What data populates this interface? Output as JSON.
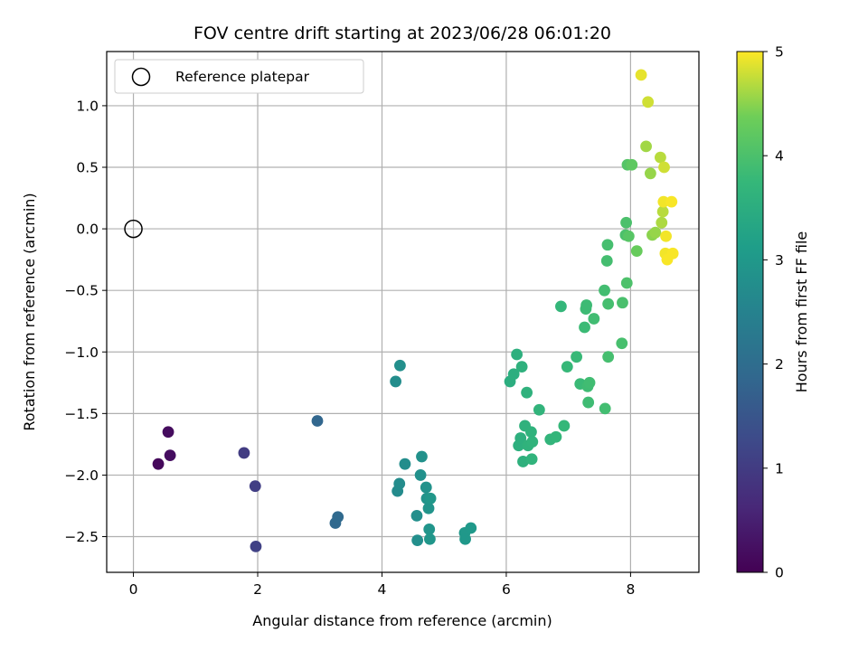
{
  "chart_data": {
    "type": "scatter",
    "title": "FOV centre drift starting at 2023/06/28 06:01:20",
    "xlabel": "Angular distance from reference (arcmin)",
    "ylabel": "Rotation from reference (arcmin)",
    "xlim": [
      -0.43,
      9.1
    ],
    "ylim": [
      -2.79,
      1.44
    ],
    "xticks": [
      0,
      2,
      4,
      6,
      8
    ],
    "yticks": [
      -2.5,
      -2.0,
      -1.5,
      -1.0,
      -0.5,
      0.0,
      0.5,
      1.0
    ],
    "xtick_labels": [
      "0",
      "2",
      "4",
      "6",
      "8"
    ],
    "ytick_labels": [
      "−2.5",
      "−2.0",
      "−1.5",
      "−1.0",
      "−0.5",
      "0.0",
      "0.5",
      "1.0"
    ],
    "grid": true,
    "legend": {
      "position": "top-left",
      "entries": [
        "Reference platepar"
      ]
    },
    "reference_point": {
      "x": 0.0,
      "y": 0.0
    },
    "colorbar": {
      "label": "Hours from first FF file",
      "range": [
        0,
        5
      ],
      "ticks": [
        0,
        1,
        2,
        3,
        4,
        5
      ],
      "tick_labels": [
        "0",
        "1",
        "2",
        "3",
        "4",
        "5"
      ],
      "colormap": "viridis"
    },
    "points": [
      {
        "x": 0.4,
        "y": -1.91,
        "h": 0.12
      },
      {
        "x": 0.56,
        "y": -1.65,
        "h": 0.18
      },
      {
        "x": 0.59,
        "y": -1.84,
        "h": 0.2
      },
      {
        "x": 1.78,
        "y": -1.82,
        "h": 1.0
      },
      {
        "x": 1.96,
        "y": -2.09,
        "h": 1.05
      },
      {
        "x": 1.97,
        "y": -2.58,
        "h": 1.1
      },
      {
        "x": 2.96,
        "y": -1.56,
        "h": 1.85
      },
      {
        "x": 3.25,
        "y": -2.39,
        "h": 1.9
      },
      {
        "x": 3.29,
        "y": -2.34,
        "h": 1.92
      },
      {
        "x": 4.22,
        "y": -1.24,
        "h": 2.75
      },
      {
        "x": 4.29,
        "y": -1.11,
        "h": 2.78
      },
      {
        "x": 4.25,
        "y": -2.13,
        "h": 2.7
      },
      {
        "x": 4.28,
        "y": -2.07,
        "h": 2.72
      },
      {
        "x": 4.37,
        "y": -1.91,
        "h": 2.74
      },
      {
        "x": 4.56,
        "y": -2.33,
        "h": 2.78
      },
      {
        "x": 4.57,
        "y": -2.53,
        "h": 2.8
      },
      {
        "x": 4.62,
        "y": -2.0,
        "h": 2.82
      },
      {
        "x": 4.64,
        "y": -1.85,
        "h": 2.84
      },
      {
        "x": 4.71,
        "y": -2.1,
        "h": 2.86
      },
      {
        "x": 4.72,
        "y": -2.19,
        "h": 2.88
      },
      {
        "x": 4.75,
        "y": -2.27,
        "h": 2.9
      },
      {
        "x": 4.76,
        "y": -2.44,
        "h": 2.92
      },
      {
        "x": 4.77,
        "y": -2.52,
        "h": 2.94
      },
      {
        "x": 4.78,
        "y": -2.19,
        "h": 2.96
      },
      {
        "x": 5.33,
        "y": -2.47,
        "h": 2.98
      },
      {
        "x": 5.34,
        "y": -2.52,
        "h": 3.0
      },
      {
        "x": 5.43,
        "y": -2.43,
        "h": 3.02
      },
      {
        "x": 6.06,
        "y": -1.24,
        "h": 3.5
      },
      {
        "x": 6.12,
        "y": -1.18,
        "h": 3.52
      },
      {
        "x": 6.17,
        "y": -1.02,
        "h": 3.54
      },
      {
        "x": 6.2,
        "y": -1.76,
        "h": 3.56
      },
      {
        "x": 6.23,
        "y": -1.7,
        "h": 3.56
      },
      {
        "x": 6.25,
        "y": -1.12,
        "h": 3.58
      },
      {
        "x": 6.27,
        "y": -1.89,
        "h": 3.58
      },
      {
        "x": 6.3,
        "y": -1.6,
        "h": 3.6
      },
      {
        "x": 6.33,
        "y": -1.33,
        "h": 3.6
      },
      {
        "x": 6.35,
        "y": -1.76,
        "h": 3.62
      },
      {
        "x": 6.4,
        "y": -1.65,
        "h": 3.62
      },
      {
        "x": 6.41,
        "y": -1.87,
        "h": 3.64
      },
      {
        "x": 6.42,
        "y": -1.73,
        "h": 3.64
      },
      {
        "x": 6.53,
        "y": -1.47,
        "h": 3.66
      },
      {
        "x": 6.71,
        "y": -1.71,
        "h": 3.68
      },
      {
        "x": 6.8,
        "y": -1.69,
        "h": 3.7
      },
      {
        "x": 6.88,
        "y": -0.63,
        "h": 3.72
      },
      {
        "x": 6.93,
        "y": -1.6,
        "h": 3.74
      },
      {
        "x": 6.98,
        "y": -1.12,
        "h": 3.76
      },
      {
        "x": 7.13,
        "y": -1.04,
        "h": 3.78
      },
      {
        "x": 7.19,
        "y": -1.26,
        "h": 3.8
      },
      {
        "x": 7.26,
        "y": -0.8,
        "h": 3.82
      },
      {
        "x": 7.28,
        "y": -0.65,
        "h": 3.84
      },
      {
        "x": 7.29,
        "y": -0.62,
        "h": 3.84
      },
      {
        "x": 7.31,
        "y": -1.28,
        "h": 3.86
      },
      {
        "x": 7.32,
        "y": -1.41,
        "h": 3.86
      },
      {
        "x": 7.34,
        "y": -1.25,
        "h": 3.88
      },
      {
        "x": 7.41,
        "y": -0.73,
        "h": 3.88
      },
      {
        "x": 7.58,
        "y": -0.5,
        "h": 3.9
      },
      {
        "x": 7.59,
        "y": -1.46,
        "h": 3.9
      },
      {
        "x": 7.62,
        "y": -0.26,
        "h": 3.92
      },
      {
        "x": 7.63,
        "y": -0.13,
        "h": 3.94
      },
      {
        "x": 7.64,
        "y": -0.61,
        "h": 3.94
      },
      {
        "x": 7.64,
        "y": -1.04,
        "h": 3.94
      },
      {
        "x": 7.86,
        "y": -0.93,
        "h": 3.96
      },
      {
        "x": 7.87,
        "y": -0.6,
        "h": 3.98
      },
      {
        "x": 7.92,
        "y": -0.05,
        "h": 4.0
      },
      {
        "x": 7.93,
        "y": 0.05,
        "h": 4.0
      },
      {
        "x": 7.94,
        "y": -0.44,
        "h": 4.02
      },
      {
        "x": 7.95,
        "y": 0.52,
        "h": 4.1
      },
      {
        "x": 7.97,
        "y": -0.06,
        "h": 4.12
      },
      {
        "x": 8.02,
        "y": 0.52,
        "h": 4.2
      },
      {
        "x": 8.1,
        "y": -0.18,
        "h": 4.3
      },
      {
        "x": 8.17,
        "y": 1.25,
        "h": 4.9
      },
      {
        "x": 8.25,
        "y": 0.67,
        "h": 4.6
      },
      {
        "x": 8.28,
        "y": 1.03,
        "h": 4.8
      },
      {
        "x": 8.32,
        "y": 0.45,
        "h": 4.55
      },
      {
        "x": 8.35,
        "y": -0.05,
        "h": 4.5
      },
      {
        "x": 8.4,
        "y": -0.03,
        "h": 4.55
      },
      {
        "x": 8.48,
        "y": 0.58,
        "h": 4.7
      },
      {
        "x": 8.5,
        "y": 0.05,
        "h": 4.65
      },
      {
        "x": 8.52,
        "y": 0.14,
        "h": 4.7
      },
      {
        "x": 8.53,
        "y": 0.22,
        "h": 4.95
      },
      {
        "x": 8.54,
        "y": 0.5,
        "h": 4.8
      },
      {
        "x": 8.56,
        "y": -0.2,
        "h": 4.95
      },
      {
        "x": 8.57,
        "y": -0.06,
        "h": 4.95
      },
      {
        "x": 8.59,
        "y": -0.25,
        "h": 4.98
      },
      {
        "x": 8.66,
        "y": 0.22,
        "h": 4.98
      },
      {
        "x": 8.68,
        "y": -0.2,
        "h": 4.98
      }
    ]
  }
}
